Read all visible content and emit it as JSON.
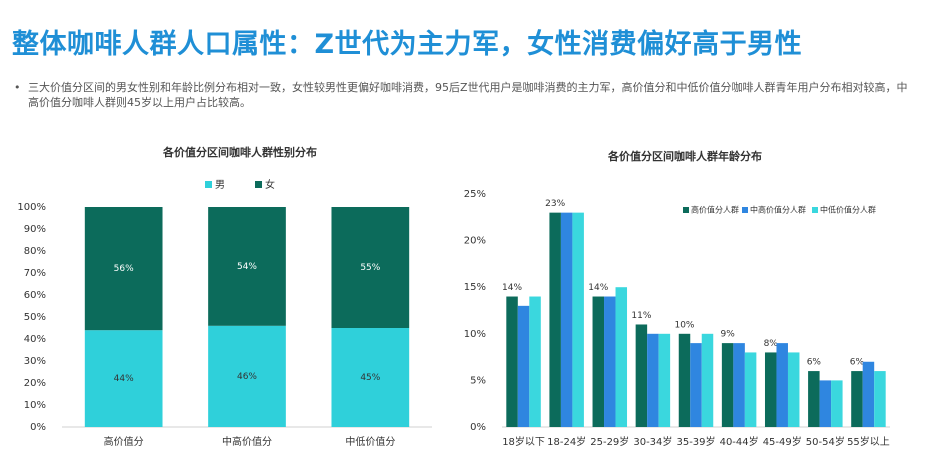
{
  "title": "整体咖啡人群人口属性：Z世代为主力军，女性消费偏好高于男性",
  "bullet": "三大价值分区间的男女性别和年龄比例分布相对一致，女性较男性更偏好咖啡消费，95后Z世代用户是咖啡消费的主力军，高价值分和中低价值分咖啡人群青年用户分布相对较高，中高价值分咖啡人群则45岁以上用户占比较高。",
  "chart_data": [
    {
      "type": "stacked_bar",
      "title": "各价值分区间咖啡人群性别分布",
      "categories": [
        "高价值分",
        "中高价值分",
        "中低价值分"
      ],
      "series": [
        {
          "name": "男",
          "color": "#2fd0da",
          "values": [
            44,
            46,
            45
          ],
          "value_labels": [
            "44%",
            "46%",
            "45%"
          ]
        },
        {
          "name": "女",
          "color": "#0c6b5b",
          "values": [
            56,
            54,
            55
          ],
          "value_labels": [
            "56%",
            "54%",
            "55%"
          ]
        }
      ],
      "ylim": [
        0,
        100
      ],
      "yticks": [
        {
          "value": 0,
          "label": "0%"
        },
        {
          "value": 10,
          "label": "10%"
        },
        {
          "value": 20,
          "label": "20%"
        },
        {
          "value": 30,
          "label": "30%"
        },
        {
          "value": 40,
          "label": "40%"
        },
        {
          "value": 50,
          "label": "50%"
        },
        {
          "value": 60,
          "label": "60%"
        },
        {
          "value": 70,
          "label": "70%"
        },
        {
          "value": 80,
          "label": "80%"
        },
        {
          "value": 90,
          "label": "90%"
        },
        {
          "value": 100,
          "label": "100%"
        }
      ],
      "legend": "top"
    },
    {
      "type": "grouped_bar",
      "title": "各价值分区间咖啡人群年龄分布",
      "categories": [
        "18岁以下",
        "18-24岁",
        "25-29岁",
        "30-34岁",
        "35-39岁",
        "40-44岁",
        "45-49岁",
        "50-54岁",
        "55岁以上"
      ],
      "series": [
        {
          "name": "高价值分人群",
          "color": "#0c6b5b",
          "values": [
            14,
            23,
            14,
            11,
            10,
            9,
            8,
            6,
            6
          ],
          "value_labels": [
            "14%",
            "23%",
            "14%",
            "11%",
            "10%",
            "9%",
            "8%",
            "6%",
            "6%"
          ]
        },
        {
          "name": "中高价值分人群",
          "color": "#2f86e0",
          "values": [
            13,
            23,
            14,
            10,
            9,
            9,
            9,
            5,
            7
          ]
        },
        {
          "name": "中低价值分人群",
          "color": "#3ad7de",
          "values": [
            14,
            23,
            15,
            10,
            10,
            8,
            8,
            5,
            6
          ]
        }
      ],
      "ylim": [
        0,
        25
      ],
      "yticks": [
        {
          "value": 0,
          "label": "0%"
        },
        {
          "value": 5,
          "label": "5%"
        },
        {
          "value": 10,
          "label": "10%"
        },
        {
          "value": 15,
          "label": "15%"
        },
        {
          "value": 20,
          "label": "20%"
        },
        {
          "value": 25,
          "label": "25%"
        }
      ],
      "legend": "upper right"
    }
  ]
}
